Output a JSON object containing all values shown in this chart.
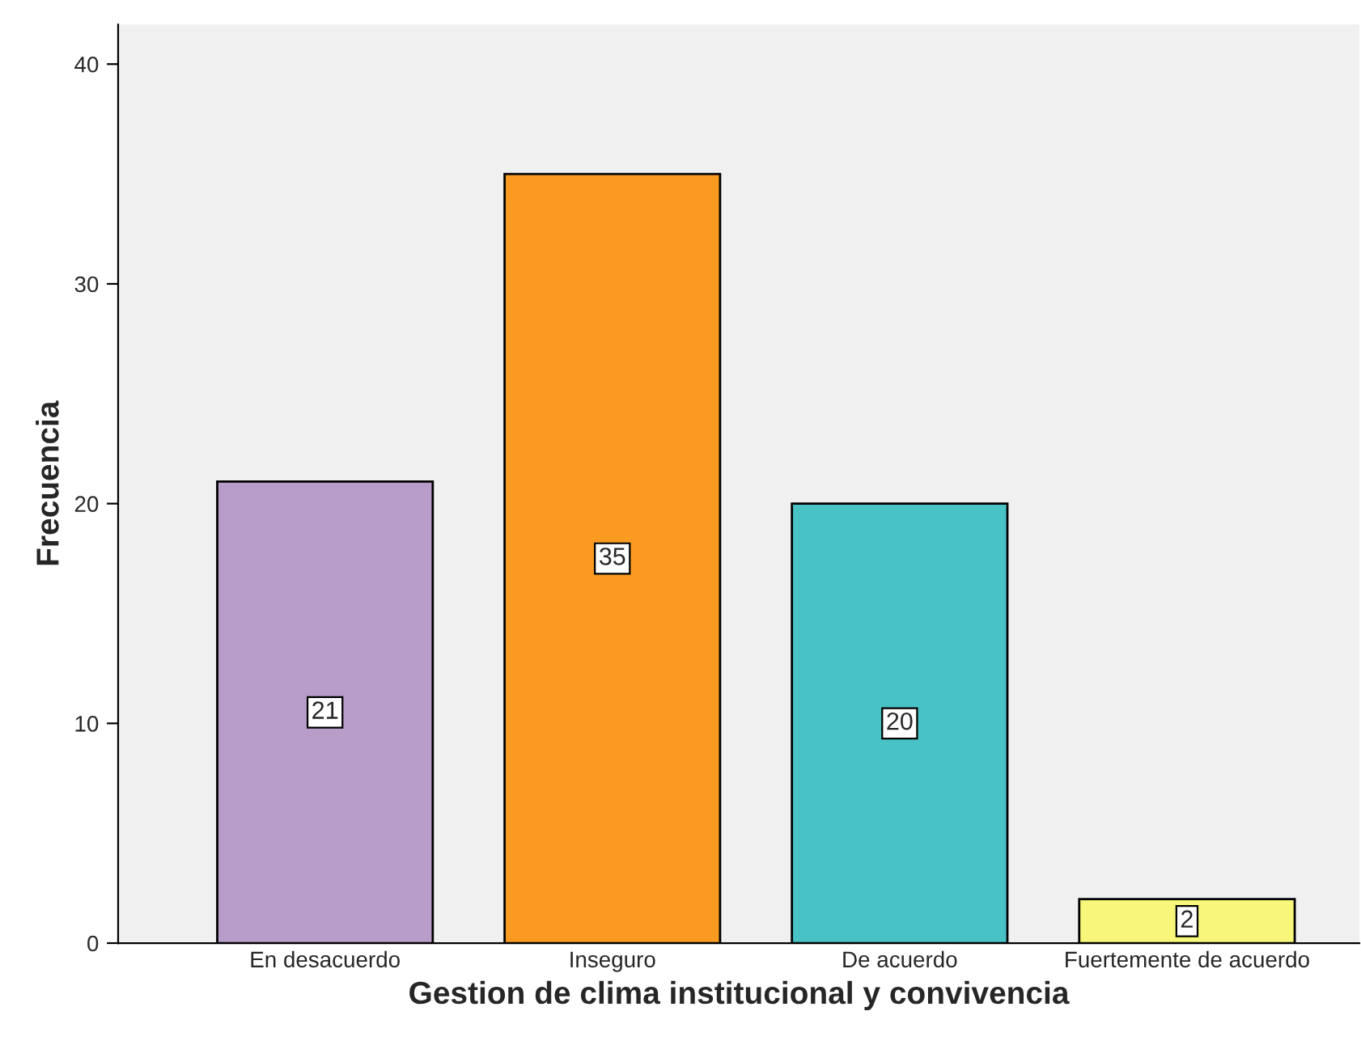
{
  "chart_data": {
    "type": "bar",
    "xlabel": "Gestion de clima institucional y convivencia",
    "ylabel": "Frecuencia",
    "categories": [
      "En desacuerdo",
      "Inseguro",
      "De acuerdo",
      "Fuertemente de acuerdo"
    ],
    "values": [
      21,
      35,
      20,
      2
    ],
    "colors": [
      "#b89cc9",
      "#f99b21",
      "#49c2c6",
      "#f8f77a"
    ],
    "ylim": [
      0,
      41.8
    ],
    "yticks": [
      0,
      10,
      20,
      30,
      40
    ],
    "data_labels": true,
    "grid": false,
    "legend": false
  }
}
